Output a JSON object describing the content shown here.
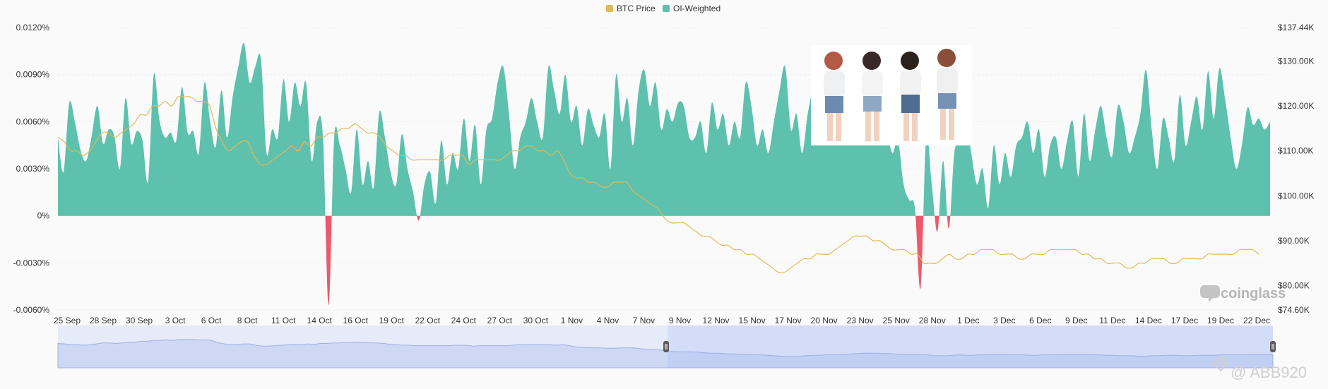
{
  "chart_data": {
    "type": "area",
    "legend": {
      "placement": "top-center",
      "items": [
        {
          "label": "BTC Price",
          "color": "#e0bb55"
        },
        {
          "label": "OI-Weighted",
          "color": "#5dc1ad"
        }
      ]
    },
    "x_tick_labels": [
      "25 Sep",
      "28 Sep",
      "30 Sep",
      "3 Oct",
      "6 Oct",
      "8 Oct",
      "11 Oct",
      "14 Oct",
      "16 Oct",
      "19 Oct",
      "22 Oct",
      "24 Oct",
      "27 Oct",
      "30 Oct",
      "1 Nov",
      "4 Nov",
      "7 Nov",
      "9 Nov",
      "12 Nov",
      "15 Nov",
      "17 Nov",
      "20 Nov",
      "23 Nov",
      "25 Nov",
      "28 Nov",
      "1 Dec",
      "3 Dec",
      "6 Dec",
      "9 Dec",
      "11 Dec",
      "14 Dec",
      "17 Dec",
      "19 Dec",
      "22 Dec"
    ],
    "y_left": {
      "ticks": [
        "0.0120%",
        "0.0090%",
        "0.0060%",
        "0.0030%",
        "0%",
        "-0.0030%",
        "-0.0060%"
      ],
      "range": [
        -0.006,
        0.012
      ]
    },
    "y_right": {
      "ticks": [
        "$137.44K",
        "$130.00K",
        "$120.00K",
        "$110.00K",
        "$100.00K",
        "$90.00K",
        "$80.00K",
        "$74.60K"
      ],
      "range": [
        74.6,
        137.44
      ]
    },
    "series": [
      {
        "name": "OI-Weighted",
        "unit": "%",
        "positive_color": "#5dc1ad",
        "negative_color": "#ea5a6b",
        "values": [
          0.005,
          0.0028,
          0.0072,
          0.006,
          0.0042,
          0.0035,
          0.0051,
          0.007,
          0.0046,
          0.0055,
          0.0051,
          0.003,
          0.0075,
          0.0046,
          0.0054,
          0.0048,
          0.0022,
          0.009,
          0.0061,
          0.005,
          0.0053,
          0.0048,
          0.0082,
          0.0053,
          0.0054,
          0.004,
          0.0085,
          0.006,
          0.0044,
          0.008,
          0.005,
          0.0076,
          0.0095,
          0.011,
          0.0085,
          0.0095,
          0.01,
          0.004,
          0.0055,
          0.005,
          0.0087,
          0.006,
          0.0085,
          0.007,
          0.0085,
          0.0035,
          0.006,
          0.0051,
          -0.0057,
          0.005,
          0.0045,
          0.003,
          0.0015,
          0.0055,
          0.002,
          0.0035,
          0.0018,
          0.0066,
          0.005,
          0.0028,
          0.002,
          0.0052,
          0.003,
          0.0015,
          -0.0003,
          0.002,
          0.0028,
          0.0008,
          0.0048,
          0.002,
          0.004,
          0.003,
          0.0062,
          0.0035,
          0.0058,
          0.002,
          0.0055,
          0.0062,
          0.0085,
          0.0095,
          0.0065,
          0.003,
          0.005,
          0.006,
          0.0075,
          0.006,
          0.005,
          0.0095,
          0.008,
          0.0065,
          0.009,
          0.006,
          0.007,
          0.0045,
          0.0068,
          0.0058,
          0.005,
          0.0065,
          0.003,
          0.009,
          0.006,
          0.0075,
          0.0045,
          0.008,
          0.0093,
          0.007,
          0.0085,
          0.0055,
          0.0068,
          0.006,
          0.0072,
          0.007,
          0.005,
          0.005,
          0.006,
          0.004,
          0.0072,
          0.0055,
          0.0065,
          0.0045,
          0.006,
          0.005,
          0.0085,
          0.007,
          0.0045,
          0.0055,
          0.004,
          0.006,
          0.008,
          0.0095,
          0.0055,
          0.0065,
          0.004,
          0.0065,
          0.008,
          0.007,
          0.0065,
          0.0075,
          0.0085,
          0.009,
          0.0065,
          0.007,
          0.01,
          0.006,
          0.008,
          0.009,
          0.0063,
          0.0055,
          0.004,
          0.0048,
          0.002,
          0.001,
          0.0005,
          -0.0046,
          0.005,
          0.002,
          -0.001,
          0.0035,
          -0.0008,
          0.004,
          0.0048,
          0.0065,
          0.004,
          0.002,
          0.003,
          0.0005,
          0.0045,
          0.002,
          0.004,
          0.0025,
          0.0045,
          0.005,
          0.006,
          0.004,
          0.0055,
          0.0025,
          0.0045,
          0.005,
          0.003,
          0.0048,
          0.006,
          0.0025,
          0.0065,
          0.0035,
          0.0055,
          0.007,
          0.005,
          0.0038,
          0.007,
          0.006,
          0.004,
          0.005,
          0.0065,
          0.0093,
          0.0055,
          0.003,
          0.0062,
          0.005,
          0.0035,
          0.0077,
          0.0045,
          0.006,
          0.0076,
          0.0055,
          0.0092,
          0.0062,
          0.0094,
          0.0075,
          0.005,
          0.003,
          0.0045,
          0.0069,
          0.0058,
          0.0062,
          0.0055,
          0.006
        ]
      },
      {
        "name": "BTC Price",
        "unit": "$K",
        "color": "#e0bb55",
        "values": [
          113,
          112,
          110,
          110,
          109,
          110,
          112,
          114,
          114,
          113,
          114,
          115,
          116,
          118,
          118,
          120,
          120,
          121,
          120,
          122,
          122,
          122,
          121,
          121,
          120,
          115,
          112,
          110,
          111,
          112,
          112,
          109,
          107,
          107,
          108,
          109,
          110,
          111,
          110,
          112,
          111,
          113,
          113,
          114,
          114,
          115,
          115,
          116,
          115,
          114,
          114,
          113,
          111,
          110,
          109,
          109,
          108,
          108,
          108,
          108,
          108,
          108,
          109,
          109,
          109,
          107,
          108,
          108,
          108,
          108,
          108,
          109,
          110,
          110,
          111,
          111,
          110,
          110,
          109,
          110,
          108,
          105,
          104,
          104,
          103,
          103,
          102,
          102,
          103,
          103,
          103,
          101,
          100,
          99,
          98,
          97,
          95,
          94,
          94,
          94,
          93,
          92,
          91,
          91,
          90,
          89,
          89,
          88,
          88,
          87,
          87,
          86,
          85,
          84,
          83,
          83,
          84,
          85,
          86,
          86,
          87,
          87,
          87,
          88,
          89,
          90,
          91,
          91,
          91,
          90,
          90,
          89,
          88,
          88,
          88,
          87,
          87,
          85,
          85,
          85,
          86,
          87,
          86,
          86,
          87,
          87,
          88,
          88,
          88,
          87,
          87,
          87,
          86,
          86,
          87,
          87,
          87,
          88,
          88,
          88,
          88,
          88,
          87,
          87,
          86,
          86,
          85,
          85,
          85,
          84,
          84,
          85,
          85,
          86,
          86,
          86,
          85,
          85,
          86,
          86,
          86,
          86,
          87,
          87,
          87,
          87,
          87,
          88,
          88,
          88,
          87
        ]
      }
    ]
  },
  "brand": {
    "watermark": "coinglass",
    "watermark_icon": "coinglass-logo-icon",
    "handle": "@ ABB920",
    "handle_icon": "binance-logo-icon"
  },
  "overlay": {
    "photo": "group-photo-four-people"
  },
  "navigator": {
    "selection_start_fraction": 0.502,
    "selection_end_fraction": 1.0
  }
}
